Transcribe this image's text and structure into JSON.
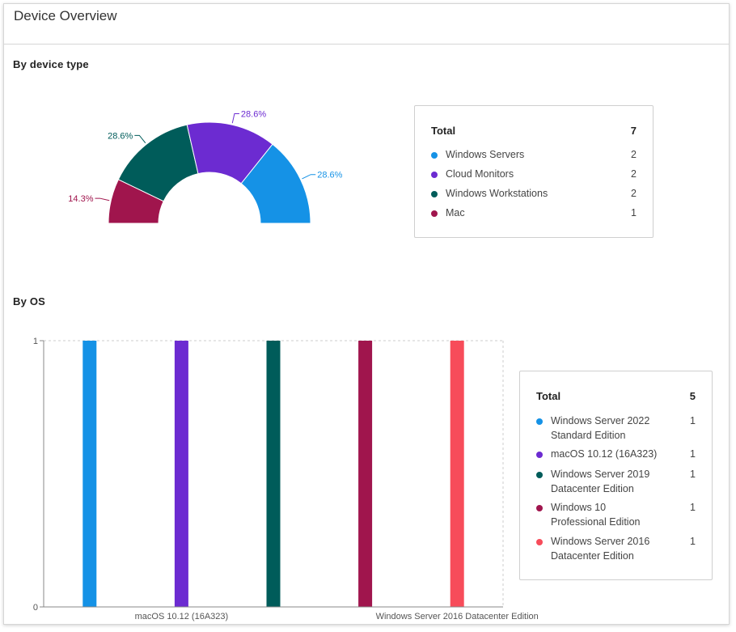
{
  "card": {
    "title": "Device Overview"
  },
  "device_section": {
    "title": "By device type",
    "legend": {
      "total_label": "Total",
      "total_value": "7",
      "items": [
        {
          "label": "Windows Servers",
          "value": "2",
          "color": "#1592e6"
        },
        {
          "label": "Cloud Monitors",
          "value": "2",
          "color": "#6c2bd1"
        },
        {
          "label": "Windows Workstations",
          "value": "2",
          "color": "#005c5a"
        },
        {
          "label": "Mac",
          "value": "1",
          "color": "#a0154d"
        }
      ]
    }
  },
  "os_section": {
    "title": "By OS",
    "legend": {
      "total_label": "Total",
      "total_value": "5",
      "items": [
        {
          "label": "Windows Server 2022 Standard Edition",
          "value": "1",
          "color": "#1592e6"
        },
        {
          "label": "macOS 10.12 (16A323)",
          "value": "1",
          "color": "#6c2bd1"
        },
        {
          "label": "Windows Server 2019 Datacenter Edition",
          "value": "1",
          "color": "#005c5a"
        },
        {
          "label": "Windows 10 Professional Edition",
          "value": "1",
          "color": "#a0154d"
        },
        {
          "label": "Windows Server 2016 Datacenter Edition",
          "value": "1",
          "color": "#f74c5a"
        }
      ]
    }
  },
  "chart_data": [
    {
      "type": "pie",
      "variant": "semi-donut",
      "categories": [
        "Mac",
        "Windows Workstations",
        "Cloud Monitors",
        "Windows Servers"
      ],
      "values": [
        1,
        2,
        2,
        2
      ],
      "labels": [
        "14.3%",
        "28.6%",
        "28.6%",
        "28.6%"
      ],
      "colors": [
        "#a0154d",
        "#005c5a",
        "#6c2bd1",
        "#1592e6"
      ]
    },
    {
      "type": "bar",
      "categories": [
        "Windows Server 2022 Standard Edition",
        "macOS 10.12 (16A323)",
        "Windows Server 2019 Datacenter Edition",
        "Windows 10 Professional Edition",
        "Windows Server 2016 Datacenter Edition"
      ],
      "values": [
        1,
        1,
        1,
        1,
        1
      ],
      "colors": [
        "#1592e6",
        "#6c2bd1",
        "#005c5a",
        "#a0154d",
        "#f74c5a"
      ],
      "visible_tick_labels": [
        "macOS 10.12 (16A323)",
        "Windows Server 2016 Datacenter Edition"
      ],
      "yticks": [
        "0",
        "1"
      ],
      "ylim": [
        0,
        1
      ],
      "grid": true
    }
  ]
}
